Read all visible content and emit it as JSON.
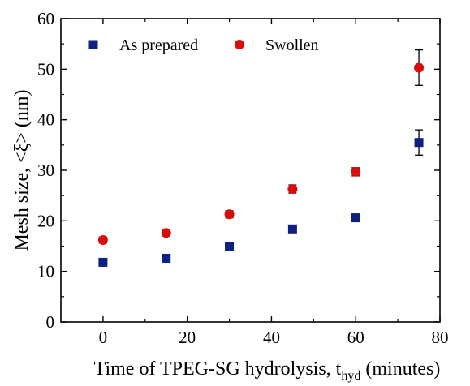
{
  "chart_data": {
    "type": "scatter",
    "xlabel": "Time of TPEG-SG hydrolysis, t",
    "xlabel_sub": "hyd",
    "xlabel_suffix": " (minutes)",
    "ylabel": "Mesh size, <ξ> (nm)",
    "xlim": [
      -10,
      80
    ],
    "ylim": [
      0,
      60
    ],
    "x_ticks": [
      0,
      20,
      40,
      60,
      80
    ],
    "y_ticks": [
      0,
      10,
      20,
      30,
      40,
      50,
      60
    ],
    "x_tick_labels": [
      "0",
      "20",
      "40",
      "60",
      "80"
    ],
    "y_tick_labels": [
      "0",
      "10",
      "20",
      "30",
      "40",
      "50",
      "60"
    ],
    "grid": false,
    "legend_position": "top",
    "series": [
      {
        "name": "As prepared",
        "marker": "square",
        "color": "#0d1f80",
        "x": [
          0,
          15,
          30,
          45,
          60,
          75
        ],
        "y": [
          11.8,
          12.6,
          15.0,
          18.4,
          20.6,
          35.5
        ],
        "err": [
          0.5,
          0.5,
          0.6,
          0.6,
          0.6,
          2.5
        ]
      },
      {
        "name": "Swollen",
        "marker": "circle",
        "color": "#d90d0d",
        "x": [
          0,
          15,
          30,
          45,
          60,
          75
        ],
        "y": [
          16.2,
          17.6,
          21.3,
          26.3,
          29.7,
          50.3
        ],
        "err": [
          0.6,
          0.6,
          0.7,
          0.8,
          0.8,
          3.5
        ]
      }
    ]
  }
}
